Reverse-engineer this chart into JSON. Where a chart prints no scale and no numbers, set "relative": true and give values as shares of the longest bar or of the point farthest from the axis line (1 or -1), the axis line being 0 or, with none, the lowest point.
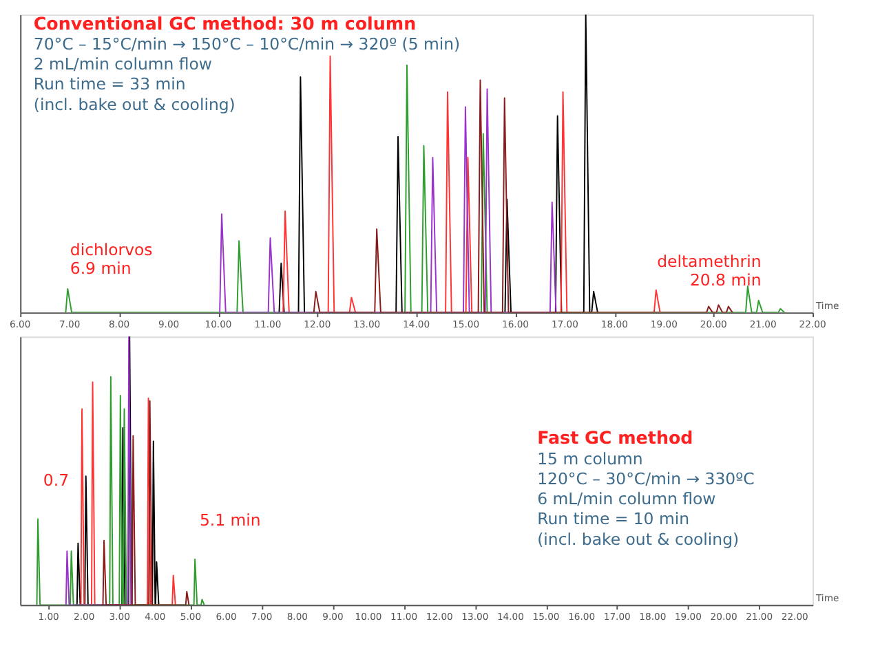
{
  "chart_data": [
    {
      "type": "line",
      "relative": true,
      "title": "Conventional GC method: 30 m column",
      "subtitle": [
        "70°C – 15°C/min → 150°C – 10°C/min → 320º (5 min)",
        "2 mL/min column flow",
        "Run time = 33 min",
        "(incl. bake out & cooling)"
      ],
      "xlim": [
        6,
        22
      ],
      "xticks": [
        {
          "value": 6,
          "label": "6.00"
        },
        {
          "value": 7,
          "label": "7.00"
        },
        {
          "value": 8,
          "label": "8.00"
        },
        {
          "value": 9,
          "label": "9.00"
        },
        {
          "value": 10,
          "label": "10.00"
        },
        {
          "value": 11,
          "label": "11.00"
        },
        {
          "value": 12,
          "label": "12.00"
        },
        {
          "value": 13,
          "label": "13.00"
        },
        {
          "value": 14,
          "label": "14.00"
        },
        {
          "value": 15,
          "label": "15.00"
        },
        {
          "value": 16,
          "label": "16.00"
        },
        {
          "value": 17,
          "label": "17.00"
        },
        {
          "value": 18,
          "label": "18.00"
        },
        {
          "value": 19,
          "label": "19.00"
        },
        {
          "value": 20,
          "label": "20.00"
        },
        {
          "value": 21,
          "label": "21.00"
        },
        {
          "value": 22,
          "label": "22.00"
        }
      ],
      "tick_labels": "x",
      "xlabel": "Time",
      "series": [
        {
          "color": "#000000",
          "x": [
            11.23,
            11.27,
            11.33,
            11.62,
            11.66,
            11.74,
            13.59,
            13.63,
            13.71,
            15.79,
            15.83,
            15.91,
            16.81,
            16.85,
            16.93,
            17.38,
            17.42,
            17.5,
            17.54,
            17.58,
            17.66
          ],
          "values": [
            0,
            0.165,
            0,
            0,
            0.79,
            0,
            0,
            0.59,
            0,
            0,
            0.38,
            0,
            0,
            0.66,
            0,
            0,
            1,
            0,
            0,
            0.07,
            0
          ]
        },
        {
          "color": "#ff3333",
          "x": [
            11.31,
            11.35,
            11.43,
            12.22,
            12.26,
            12.34,
            12.65,
            12.69,
            12.77,
            14.59,
            14.63,
            14.71,
            15.0,
            15.04,
            15.12,
            16.92,
            16.96,
            17.04,
            18.8,
            18.84,
            18.92
          ],
          "values": [
            0,
            0.34,
            0,
            0,
            0.86,
            0,
            0,
            0.05,
            0,
            0,
            0.74,
            0,
            0,
            0.52,
            0,
            0,
            0.74,
            0,
            0,
            0.075,
            0
          ]
        },
        {
          "color": "#2e9e2e",
          "x": [
            6.92,
            6.96,
            7.04,
            10.38,
            10.42,
            10.5,
            13.77,
            13.81,
            13.89,
            14.11,
            14.15,
            14.23,
            15.31,
            15.35,
            15.43,
            20.65,
            20.69,
            20.77,
            20.87,
            20.91,
            20.99,
            21.31,
            21.35,
            21.43
          ],
          "values": [
            0,
            0.079,
            0,
            0,
            0.24,
            0,
            0,
            0.83,
            0,
            0,
            0.56,
            0,
            0,
            0.6,
            0,
            0,
            0.088,
            0,
            0,
            0.04,
            0,
            0,
            0.0125,
            0
          ]
        },
        {
          "color": "#9933cc",
          "x": [
            10.03,
            10.07,
            10.15,
            11.01,
            11.05,
            11.13,
            14.29,
            14.33,
            14.41,
            14.95,
            14.99,
            15.07,
            15.39,
            15.43,
            15.51,
            16.7,
            16.74,
            16.82
          ],
          "values": [
            0,
            0.33,
            0,
            0,
            0.25,
            0,
            0,
            0.52,
            0,
            0,
            0.69,
            0,
            0,
            0.75,
            0,
            0,
            0.37,
            0
          ]
        },
        {
          "color": "#8b1a1a",
          "x": [
            11.93,
            11.97,
            12.05,
            13.16,
            13.2,
            13.28,
            15.25,
            15.29,
            15.37,
            15.74,
            15.78,
            15.86,
            19.86,
            19.9,
            19.98,
            20.06,
            20.1,
            20.18,
            20.26,
            20.3,
            20.38
          ],
          "values": [
            0,
            0.07,
            0,
            0,
            0.28,
            0,
            0,
            0.78,
            0,
            0,
            0.72,
            0,
            0,
            0.02,
            0,
            0,
            0.025,
            0,
            0,
            0.02,
            0
          ]
        }
      ],
      "annotations": [
        {
          "text": "dichlorvos\n6.9 min",
          "x": 6.9,
          "y": 0.079
        },
        {
          "text": "deltamethrin\n20.8 min",
          "x": 20.8,
          "y": 0.04
        }
      ]
    },
    {
      "type": "line",
      "relative": true,
      "title": "Fast GC method",
      "subtitle": [
        "15 m column",
        "120°C – 30°C/min → 330ºC",
        "6 mL/min column flow",
        "Run time = 10 min",
        "(incl. bake out & cooling)"
      ],
      "xlim": [
        0.2,
        22.5
      ],
      "xlabel": "Time",
      "xticks": [
        {
          "value": 1,
          "label": "1.00"
        },
        {
          "value": 2,
          "label": "2.00"
        },
        {
          "value": 3,
          "label": "3.00"
        },
        {
          "value": 4,
          "label": "4.00"
        },
        {
          "value": 5,
          "label": "5.00"
        },
        {
          "value": 6,
          "label": "6.00"
        },
        {
          "value": 7,
          "label": "7.00"
        },
        {
          "value": 8,
          "label": "8.00"
        },
        {
          "value": 9,
          "label": "9.00"
        },
        {
          "value": 10,
          "label": "10.00"
        },
        {
          "value": 11,
          "label": "11.00"
        },
        {
          "value": 12,
          "label": "12.00"
        },
        {
          "value": 13,
          "label": "13.00"
        },
        {
          "value": 14,
          "label": "14.00"
        },
        {
          "value": 15,
          "label": "15.00"
        },
        {
          "value": 16,
          "label": "16.00"
        },
        {
          "value": 17,
          "label": "17.00"
        },
        {
          "value": 18,
          "label": "18.00"
        },
        {
          "value": 19,
          "label": "19.00"
        },
        {
          "value": 20,
          "label": "20.00"
        },
        {
          "value": 21,
          "label": "21.00"
        },
        {
          "value": 22,
          "label": "22.00"
        }
      ],
      "tick_labels": "x",
      "series": [
        {
          "color": "#000000",
          "x": [
            1.8,
            1.83,
            1.89,
            2.02,
            2.05,
            2.11,
            3.06,
            3.09,
            3.15,
            3.25,
            3.28,
            3.34,
            3.92,
            3.95,
            4.0,
            4.01,
            4.04,
            4.1
          ],
          "values": [
            0,
            0.23,
            0,
            0,
            0.48,
            0,
            0,
            0.66,
            0,
            0,
            1,
            0,
            0,
            0.61,
            0,
            0,
            0.16,
            0
          ]
        },
        {
          "color": "#ff3333",
          "x": [
            1.91,
            1.94,
            2.0,
            2.21,
            2.24,
            2.3,
            3.78,
            3.81,
            3.87,
            4.48,
            4.51,
            4.57
          ],
          "values": [
            0,
            0.73,
            0,
            0,
            0.83,
            0,
            0,
            0.77,
            0,
            0,
            0.11,
            0
          ]
        },
        {
          "color": "#2e9e2e",
          "x": [
            0.67,
            0.7,
            0.76,
            1.61,
            1.64,
            1.7,
            2.72,
            2.75,
            2.81,
            2.99,
            3.02,
            3.07,
            3.1,
            3.13,
            3.19,
            5.09,
            5.12,
            5.18,
            5.29,
            5.32,
            5.38
          ],
          "values": [
            0,
            0.32,
            0,
            0,
            0.2,
            0,
            0,
            0.85,
            0,
            0,
            0.78,
            0,
            0,
            0.73,
            0,
            0,
            0.17,
            0,
            0,
            0.02,
            0
          ]
        },
        {
          "color": "#9933cc",
          "x": [
            1.49,
            1.52,
            1.58,
            3.23,
            3.26,
            3.32
          ],
          "values": [
            0,
            0.2,
            0,
            0,
            1,
            0
          ]
        },
        {
          "color": "#8b1a1a",
          "x": [
            2.53,
            2.56,
            2.62,
            3.35,
            3.38,
            3.44,
            3.82,
            3.85,
            3.91,
            4.86,
            4.89,
            4.95
          ],
          "values": [
            0,
            0.24,
            0,
            0,
            0.63,
            0,
            0,
            0.76,
            0,
            0,
            0.05,
            0
          ]
        }
      ],
      "annotations": [
        {
          "text": "0.7",
          "x": 0.7,
          "y": 0.32
        },
        {
          "text": "5.1 min",
          "x": 5.1,
          "y": 0.17
        }
      ]
    }
  ]
}
